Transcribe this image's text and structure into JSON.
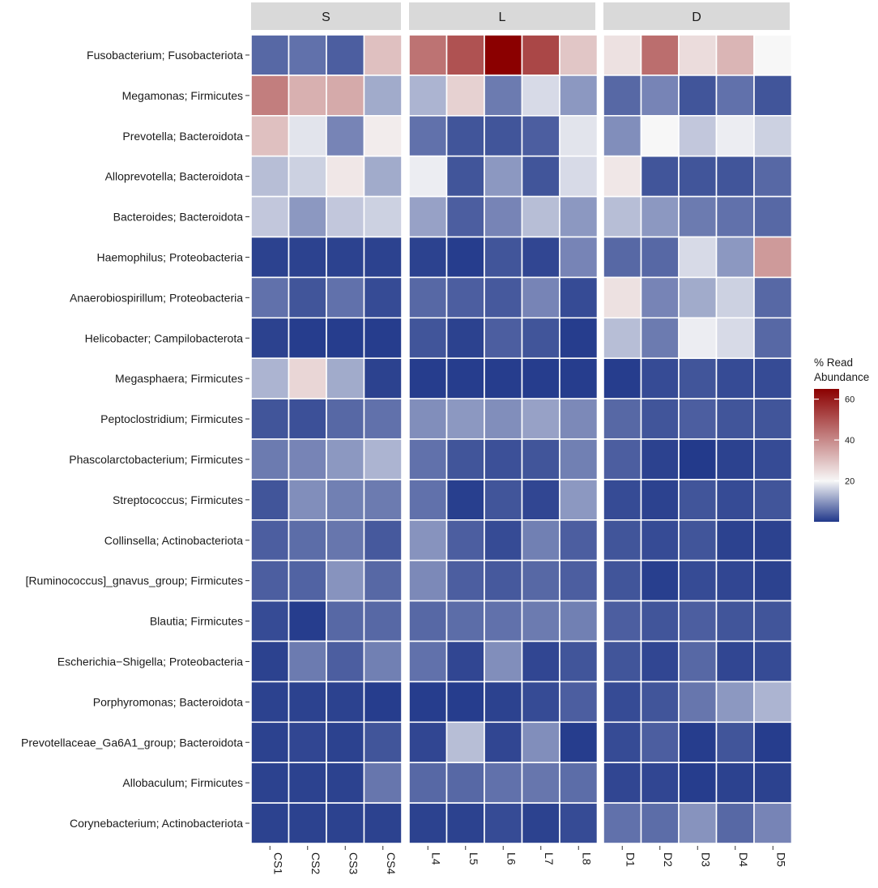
{
  "chart_data": {
    "type": "heatmap",
    "title": "",
    "facets": [
      {
        "label": "S",
        "samples": [
          "CS1",
          "CS2",
          "CS3",
          "CS4"
        ]
      },
      {
        "label": "L",
        "samples": [
          "L4",
          "L5",
          "L6",
          "L7",
          "L8"
        ]
      },
      {
        "label": "D",
        "samples": [
          "D1",
          "D2",
          "D3",
          "D4",
          "D5"
        ]
      }
    ],
    "rows": [
      "Fusobacterium; Fusobacteriota",
      "Megamonas; Firmicutes",
      "Prevotella; Bacteroidota",
      "Alloprevotella; Bacteroidota",
      "Bacteroides; Bacteroidota",
      "Haemophilus; Proteobacteria",
      "Anaerobiospirillum; Proteobacteria",
      "Helicobacter; Campilobacterota",
      "Megasphaera; Firmicutes",
      "Peptoclostridium; Firmicutes",
      "Phascolarctobacterium; Firmicutes",
      "Streptococcus; Firmicutes",
      "Collinsella; Actinobacteriota",
      "[Ruminococcus]_gnavus_group; Firmicutes",
      "Blautia; Firmicutes",
      "Escherichia−Shigella; Proteobacteria",
      "Porphyromonas; Bacteroidota",
      "Prevotellaceae_Ga6A1_group; Bacteroidota",
      "Allobaculum; Firmicutes",
      "Corynebacterium; Actinobacteriota"
    ],
    "values": [
      [
        5,
        6,
        4,
        30,
        44,
        50,
        65,
        52,
        29,
        24,
        45,
        25,
        32,
        20
      ],
      [
        42,
        33,
        34,
        12,
        13,
        27,
        7,
        17,
        10,
        5,
        8,
        3,
        6,
        3
      ],
      [
        30,
        18,
        8,
        22,
        6,
        3,
        3,
        4,
        18,
        9,
        20,
        15,
        19,
        16
      ],
      [
        14,
        16,
        23,
        12,
        19,
        3,
        10,
        3,
        17,
        23,
        3,
        3,
        3,
        5
      ],
      [
        15,
        10,
        15,
        16,
        11,
        4,
        8,
        14,
        10,
        14,
        10,
        7,
        6,
        5
      ],
      [
        1,
        1,
        1,
        1,
        1,
        0.5,
        3,
        1.5,
        8,
        5,
        5,
        17,
        10,
        37
      ],
      [
        6,
        3,
        6,
        2,
        5,
        4,
        3.5,
        8,
        2,
        24,
        8,
        12,
        16,
        5
      ],
      [
        1,
        0.5,
        0.5,
        0.5,
        3,
        1,
        4,
        3,
        0.5,
        14,
        7,
        19,
        17,
        5
      ],
      [
        13,
        26,
        12,
        1,
        0.5,
        0.5,
        0.5,
        0.5,
        0.5,
        0.5,
        2,
        3,
        2,
        2
      ],
      [
        3,
        2.5,
        5,
        6,
        9,
        10,
        9,
        11,
        8.5,
        5,
        3,
        4,
        3,
        3
      ],
      [
        7,
        8,
        10,
        13,
        6,
        3,
        2.5,
        3,
        7.5,
        4,
        1,
        0.2,
        1,
        2
      ],
      [
        3,
        9,
        7.5,
        7,
        6,
        0.7,
        3,
        1.5,
        10,
        2,
        1,
        3,
        2,
        3
      ],
      [
        4,
        5.5,
        6.5,
        3.5,
        9.5,
        4,
        2,
        7.5,
        4,
        3,
        2,
        3,
        1,
        1
      ],
      [
        4,
        4.5,
        9.5,
        5,
        8.5,
        4,
        3.5,
        5,
        4,
        3,
        0.7,
        2,
        1.5,
        1
      ],
      [
        2,
        0.5,
        5,
        5,
        5,
        5.5,
        6,
        7,
        7.5,
        4,
        3,
        4,
        3,
        3
      ],
      [
        1,
        7,
        4,
        7.5,
        6,
        1.5,
        9,
        1.5,
        3,
        3,
        1.5,
        5,
        1.5,
        2
      ],
      [
        1,
        1,
        1,
        0.5,
        0.5,
        0.5,
        1,
        2,
        4,
        2,
        3,
        6.5,
        10,
        13
      ],
      [
        1,
        1.5,
        1,
        3,
        1.5,
        14,
        1.5,
        9,
        0.5,
        2,
        4,
        0.5,
        3,
        0.5
      ],
      [
        1,
        1,
        1,
        6.5,
        5,
        5,
        6,
        6.5,
        5.5,
        1.5,
        1.5,
        0.5,
        1,
        1
      ],
      [
        1,
        1,
        1,
        1,
        1,
        1,
        2,
        1,
        2,
        6,
        5.5,
        9.5,
        5,
        8
      ]
    ],
    "legend": {
      "title_line1": "% Read",
      "title_line2": "Abundance",
      "ticks": [
        20,
        40,
        60
      ],
      "range": [
        0,
        65
      ],
      "midpoint": 20,
      "position": "right",
      "colors": {
        "low": "#21388a",
        "mid": "#f7f7f7",
        "high": "#8b0000"
      }
    }
  },
  "style": {
    "strip_bg": "#d9d9d9",
    "cell_border": "#ffffff",
    "text_color": "#1a1a1a"
  }
}
